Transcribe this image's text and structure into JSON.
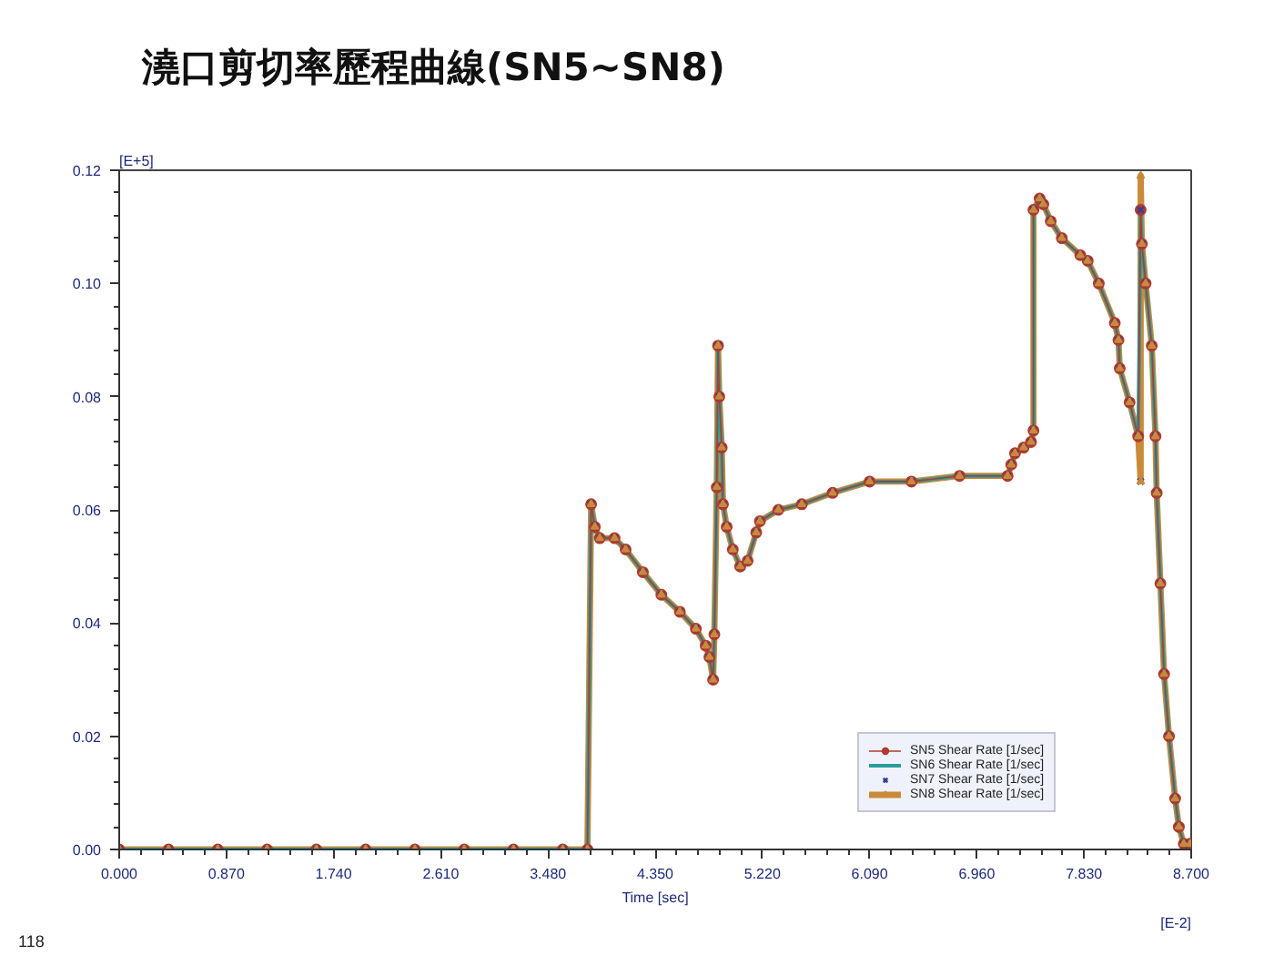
{
  "chart_data": {
    "type": "line",
    "title": "澆口剪切率歷程曲線(SN5~SN8)",
    "xlabel": "Time [sec]",
    "ylabel": "[E+5]",
    "annotations": [
      "[E-2]",
      "118"
    ],
    "xlim": [
      0,
      8.7
    ],
    "ylim": [
      0,
      0.12
    ],
    "xticks": [
      {
        "value": 0,
        "label": "0.000"
      },
      {
        "value": 0.87,
        "label": "0.870"
      },
      {
        "value": 1.74,
        "label": "1.740"
      },
      {
        "value": 2.61,
        "label": "2.610"
      },
      {
        "value": 3.48,
        "label": "3.480"
      },
      {
        "value": 4.35,
        "label": "4.350"
      },
      {
        "value": 5.22,
        "label": "5.220"
      },
      {
        "value": 6.09,
        "label": "6.090"
      },
      {
        "value": 6.96,
        "label": "6.960"
      },
      {
        "value": 7.83,
        "label": "7.830"
      },
      {
        "value": 8.7,
        "label": "8.700"
      }
    ],
    "yticks": [
      {
        "value": 0,
        "label": "0.00"
      },
      {
        "value": 0.02,
        "label": "0.02"
      },
      {
        "value": 0.04,
        "label": "0.04"
      },
      {
        "value": 0.06,
        "label": "0.06"
      },
      {
        "value": 0.08,
        "label": "0.08"
      },
      {
        "value": 0.1,
        "label": "0.10"
      },
      {
        "value": 0.12,
        "label": "0.12"
      }
    ],
    "legend": "bottom right",
    "series": [
      {
        "name": "SN5 Shear Rate [1/sec]",
        "color": "#b03a2e",
        "marker": "circle",
        "x": [
          0,
          0.4,
          0.8,
          1.2,
          1.6,
          2.0,
          2.4,
          2.8,
          3.2,
          3.6,
          3.8,
          3.83,
          3.86,
          3.9,
          4.02,
          4.11,
          4.25,
          4.4,
          4.55,
          4.68,
          4.76,
          4.79,
          4.82,
          4.83,
          4.85,
          4.86,
          4.87,
          4.89,
          4.9,
          4.93,
          4.98,
          5.04,
          5.1,
          5.17,
          5.2,
          5.35,
          5.54,
          5.79,
          6.09,
          6.43,
          6.82,
          7.21,
          7.24,
          7.27,
          7.34,
          7.4,
          7.42,
          7.42,
          7.47,
          7.5,
          7.56,
          7.65,
          7.8,
          7.86,
          7.95,
          8.08,
          8.11,
          8.12,
          8.2,
          8.27,
          8.29,
          8.3,
          8.33,
          8.38,
          8.41,
          8.42,
          8.45,
          8.48,
          8.52,
          8.57,
          8.6,
          8.64,
          8.69
        ],
        "values": [
          0,
          0,
          0,
          0,
          0,
          0,
          0,
          0,
          0,
          0,
          0,
          0.061,
          0.057,
          0.055,
          0.055,
          0.053,
          0.049,
          0.045,
          0.042,
          0.039,
          0.036,
          0.034,
          0.03,
          0.038,
          0.064,
          0.089,
          0.08,
          0.071,
          0.061,
          0.057,
          0.053,
          0.05,
          0.051,
          0.056,
          0.058,
          0.06,
          0.061,
          0.063,
          0.065,
          0.065,
          0.066,
          0.066,
          0.068,
          0.07,
          0.071,
          0.072,
          0.074,
          0.113,
          0.115,
          0.114,
          0.111,
          0.108,
          0.105,
          0.104,
          0.1,
          0.093,
          0.09,
          0.085,
          0.079,
          0.073,
          0.113,
          0.107,
          0.1,
          0.089,
          0.073,
          0.063,
          0.047,
          0.031,
          0.02,
          0.009,
          0.004,
          0.001,
          0.001
        ]
      },
      {
        "name": "SN6 Shear Rate [1/sec]",
        "color": "#2a9d9a",
        "x": [
          0,
          0.4,
          0.8,
          1.2,
          1.6,
          2.0,
          2.4,
          2.8,
          3.2,
          3.6,
          3.8,
          3.83,
          3.86,
          3.9,
          4.02,
          4.11,
          4.25,
          4.4,
          4.55,
          4.68,
          4.76,
          4.79,
          4.82,
          4.83,
          4.85,
          4.86,
          4.87,
          4.89,
          4.9,
          4.93,
          4.98,
          5.04,
          5.1,
          5.17,
          5.2,
          5.35,
          5.54,
          5.79,
          6.09,
          6.43,
          6.82,
          7.21,
          7.24,
          7.27,
          7.34,
          7.4,
          7.42,
          7.42,
          7.47,
          7.5,
          7.56,
          7.65,
          7.8,
          7.86,
          7.95,
          8.08,
          8.11,
          8.12,
          8.2,
          8.27,
          8.29,
          8.3,
          8.33,
          8.38,
          8.41,
          8.42,
          8.45,
          8.48,
          8.52,
          8.57,
          8.6,
          8.64,
          8.69
        ],
        "values": [
          0,
          0,
          0,
          0,
          0,
          0,
          0,
          0,
          0,
          0,
          0,
          0.061,
          0.057,
          0.055,
          0.055,
          0.053,
          0.049,
          0.045,
          0.042,
          0.039,
          0.036,
          0.034,
          0.03,
          0.038,
          0.064,
          0.089,
          0.08,
          0.071,
          0.061,
          0.057,
          0.053,
          0.05,
          0.051,
          0.056,
          0.058,
          0.06,
          0.061,
          0.063,
          0.065,
          0.065,
          0.066,
          0.066,
          0.068,
          0.07,
          0.071,
          0.072,
          0.074,
          0.113,
          0.115,
          0.114,
          0.111,
          0.108,
          0.105,
          0.104,
          0.1,
          0.093,
          0.09,
          0.085,
          0.079,
          0.073,
          0.113,
          0.107,
          0.1,
          0.089,
          0.073,
          0.063,
          0.047,
          0.031,
          0.02,
          0.009,
          0.004,
          0.001,
          0.001
        ]
      },
      {
        "name": "SN7 Shear Rate [1/sec]",
        "color": "#3b3f8f",
        "type": "scatter",
        "marker": "cross",
        "x": [
          0,
          0.4,
          0.8,
          1.2,
          1.6,
          2.0,
          2.4,
          2.8,
          3.2,
          3.6,
          3.8,
          3.83,
          3.86,
          3.9,
          4.02,
          4.11,
          4.25,
          4.4,
          4.55,
          4.68,
          4.76,
          4.79,
          4.82,
          4.83,
          4.85,
          4.86,
          4.87,
          4.89,
          4.9,
          4.93,
          4.98,
          5.04,
          5.1,
          5.17,
          5.2,
          5.35,
          5.54,
          5.79,
          6.09,
          6.43,
          6.82,
          7.21,
          7.24,
          7.27,
          7.34,
          7.4,
          7.42,
          7.42,
          7.47,
          7.5,
          7.56,
          7.65,
          7.8,
          7.86,
          7.95,
          8.08,
          8.11,
          8.12,
          8.2,
          8.27,
          8.29,
          8.29,
          8.3,
          8.33,
          8.38,
          8.41,
          8.42,
          8.45,
          8.48,
          8.52,
          8.57,
          8.6,
          8.64,
          8.69
        ],
        "values": [
          0,
          0,
          0,
          0,
          0,
          0,
          0,
          0,
          0,
          0,
          0,
          0.061,
          0.057,
          0.055,
          0.055,
          0.053,
          0.049,
          0.045,
          0.042,
          0.039,
          0.036,
          0.034,
          0.03,
          0.038,
          0.064,
          0.089,
          0.08,
          0.071,
          0.061,
          0.057,
          0.053,
          0.05,
          0.051,
          0.056,
          0.058,
          0.06,
          0.061,
          0.063,
          0.065,
          0.065,
          0.066,
          0.066,
          0.068,
          0.07,
          0.071,
          0.072,
          0.074,
          0.113,
          0.115,
          0.114,
          0.111,
          0.108,
          0.105,
          0.104,
          0.1,
          0.093,
          0.09,
          0.085,
          0.079,
          0.073,
          0.065,
          0.113,
          0.107,
          0.1,
          0.089,
          0.073,
          0.063,
          0.047,
          0.031,
          0.02,
          0.009,
          0.004,
          0.001,
          0.001
        ]
      },
      {
        "name": "SN8 Shear Rate [1/sec]",
        "color": "#c98a3a",
        "marker": "triangle",
        "x": [
          0,
          0.4,
          0.8,
          1.2,
          1.6,
          2.0,
          2.4,
          2.8,
          3.2,
          3.6,
          3.8,
          3.83,
          3.86,
          3.9,
          4.02,
          4.11,
          4.25,
          4.4,
          4.55,
          4.68,
          4.76,
          4.79,
          4.82,
          4.83,
          4.85,
          4.86,
          4.87,
          4.89,
          4.9,
          4.93,
          4.98,
          5.04,
          5.1,
          5.17,
          5.2,
          5.35,
          5.54,
          5.79,
          6.09,
          6.43,
          6.82,
          7.21,
          7.24,
          7.27,
          7.34,
          7.4,
          7.42,
          7.42,
          7.47,
          7.5,
          7.56,
          7.65,
          7.8,
          7.86,
          7.95,
          8.08,
          8.11,
          8.12,
          8.2,
          8.27,
          8.29,
          8.29,
          8.3,
          8.33,
          8.38,
          8.41,
          8.42,
          8.45,
          8.48,
          8.52,
          8.57,
          8.6,
          8.64,
          8.69
        ],
        "values": [
          0,
          0,
          0,
          0,
          0,
          0,
          0,
          0,
          0,
          0,
          0,
          0.061,
          0.057,
          0.055,
          0.055,
          0.053,
          0.049,
          0.045,
          0.042,
          0.039,
          0.036,
          0.034,
          0.03,
          0.038,
          0.064,
          0.089,
          0.08,
          0.071,
          0.061,
          0.057,
          0.053,
          0.05,
          0.051,
          0.056,
          0.058,
          0.06,
          0.061,
          0.063,
          0.065,
          0.065,
          0.066,
          0.066,
          0.068,
          0.07,
          0.071,
          0.072,
          0.074,
          0.113,
          0.115,
          0.114,
          0.111,
          0.108,
          0.105,
          0.104,
          0.1,
          0.093,
          0.09,
          0.085,
          0.079,
          0.073,
          0.065,
          0.119,
          0.107,
          0.1,
          0.089,
          0.073,
          0.063,
          0.047,
          0.031,
          0.02,
          0.009,
          0.004,
          0.001,
          0.001
        ]
      }
    ]
  }
}
